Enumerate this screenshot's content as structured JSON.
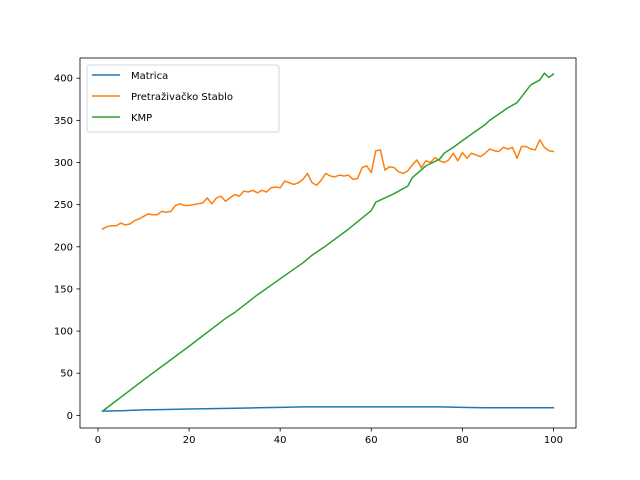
{
  "chart_data": {
    "type": "line",
    "title": "",
    "xlabel": "",
    "ylabel": "",
    "xlim": [
      -3.95,
      104.95
    ],
    "ylim": [
      -15.0,
      424.0
    ],
    "xticks": [
      0,
      20,
      40,
      60,
      80,
      100
    ],
    "yticks": [
      0,
      50,
      100,
      150,
      200,
      250,
      300,
      350,
      400
    ],
    "grid": false,
    "legend_position": "upper-left",
    "series": [
      {
        "name": "Matrica",
        "color": "#1f77b4",
        "x": [
          1,
          5,
          10,
          15,
          20,
          25,
          30,
          35,
          40,
          45,
          50,
          55,
          60,
          65,
          70,
          75,
          80,
          85,
          90,
          95,
          100
        ],
        "y": [
          5,
          5.5,
          6.5,
          7,
          7.5,
          8,
          8.5,
          9,
          9.5,
          10,
          10,
          10,
          10,
          10,
          10,
          10,
          9.5,
          9,
          9,
          9,
          9
        ]
      },
      {
        "name": "Pretraživačko Stablo",
        "color": "#ff7f0e",
        "x": [
          1,
          2,
          3,
          4,
          5,
          6,
          7,
          8,
          9,
          10,
          11,
          12,
          13,
          14,
          15,
          16,
          17,
          18,
          19,
          20,
          21,
          22,
          23,
          24,
          25,
          26,
          27,
          28,
          29,
          30,
          31,
          32,
          33,
          34,
          35,
          36,
          37,
          38,
          39,
          40,
          41,
          42,
          43,
          44,
          45,
          46,
          47,
          48,
          49,
          50,
          51,
          52,
          53,
          54,
          55,
          56,
          57,
          58,
          59,
          60,
          61,
          62,
          63,
          64,
          65,
          66,
          67,
          68,
          69,
          70,
          71,
          72,
          73,
          74,
          75,
          76,
          77,
          78,
          79,
          80,
          81,
          82,
          83,
          84,
          85,
          86,
          87,
          88,
          89,
          90,
          91,
          92,
          93,
          94,
          95,
          96,
          97,
          98,
          99,
          100
        ],
        "y": [
          221,
          224,
          225,
          225,
          228,
          226,
          227,
          231,
          233,
          236,
          239,
          238,
          238,
          242,
          241,
          242,
          249,
          251,
          249,
          249,
          250,
          251,
          252,
          258,
          251,
          258,
          260,
          254,
          258,
          262,
          260,
          266,
          265,
          267,
          264,
          267,
          265,
          270,
          271,
          270,
          278,
          276,
          274,
          276,
          280,
          287,
          276,
          273,
          279,
          287,
          284,
          283,
          285,
          284,
          285,
          280,
          281,
          294,
          296,
          288,
          314,
          315,
          291,
          295,
          294,
          289,
          287,
          290,
          297,
          303,
          294,
          302,
          300,
          306,
          302,
          300,
          303,
          311,
          302,
          312,
          305,
          311,
          309,
          307,
          311,
          316,
          314,
          313,
          318,
          316,
          318,
          305,
          319,
          319,
          316,
          315,
          327,
          318,
          314,
          313
        ]
      },
      {
        "name": "KMP",
        "color": "#2ca02c",
        "x": [
          1,
          10,
          20,
          28,
          30,
          35,
          40,
          45,
          47,
          50,
          55,
          60,
          61,
          65,
          68,
          69,
          72,
          75,
          76,
          78,
          80,
          85,
          86,
          90,
          92,
          95,
          97,
          98,
          99,
          100
        ],
        "y": [
          5,
          42,
          82,
          115,
          122,
          143,
          162,
          181,
          190,
          201,
          221,
          243,
          253,
          263,
          272,
          282,
          296,
          304,
          311,
          318,
          326,
          345,
          350,
          365,
          371,
          392,
          398,
          406,
          401,
          405
        ]
      }
    ]
  }
}
